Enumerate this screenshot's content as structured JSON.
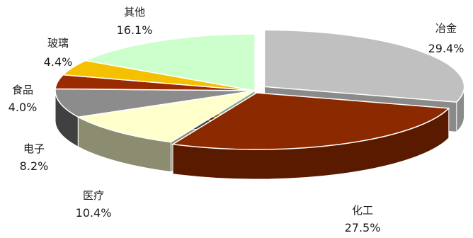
{
  "chart_data": {
    "type": "pie",
    "title": "",
    "legend": "none",
    "labels_position": "outside",
    "slices": [
      {
        "name": "冶金",
        "value": 29.4,
        "label": "29.4%",
        "color": "#c0c0c0",
        "side": "#8a8a8a"
      },
      {
        "name": "化工",
        "value": 27.5,
        "label": "27.5%",
        "color": "#8b2a00",
        "side": "#5a1a00"
      },
      {
        "name": "医疗",
        "value": 10.4,
        "label": "10.4%",
        "color": "#ffffcc",
        "side": "#8c8c70"
      },
      {
        "name": "电子",
        "value": 8.2,
        "label": "8.2%",
        "color": "#8c8c8c",
        "side": "#404040"
      },
      {
        "name": "食品",
        "value": 4.0,
        "label": "4.0%",
        "color": "#9a2a00",
        "side": "#5a1800"
      },
      {
        "name": "玻璃",
        "value": 4.4,
        "label": "4.4%",
        "color": "#f5c000",
        "side": "#a07a00"
      },
      {
        "name": "其他",
        "value": 16.1,
        "label": "16.1%",
        "color": "#ccffcc",
        "side": "#88aa88"
      }
    ]
  }
}
